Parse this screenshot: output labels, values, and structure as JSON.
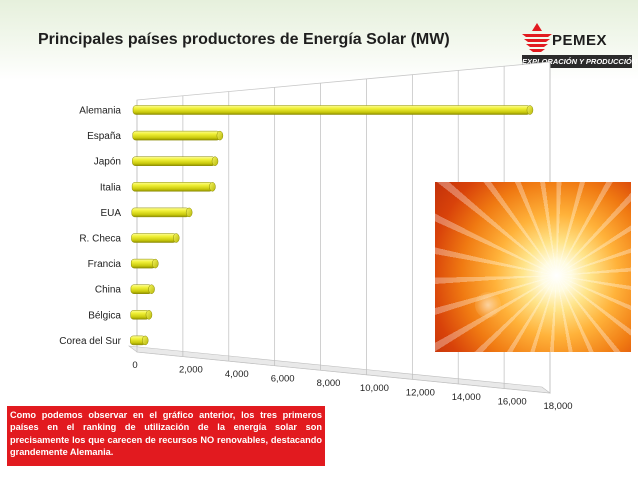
{
  "title": "Principales países productores de Energía Solar (MW)",
  "logo": {
    "name": "PEMEX",
    "subtitle": "EXPLORACIÓN Y PRODUCCIÓN"
  },
  "chart_data": {
    "type": "bar",
    "orientation": "horizontal",
    "style": "3d-cylinder",
    "title": "",
    "xlabel": "",
    "ylabel": "",
    "categories": [
      "Alemania",
      "España",
      "Japón",
      "Italia",
      "EUA",
      "R. Checa",
      "Francia",
      "China",
      "Bélgica",
      "Corea del Sur"
    ],
    "values": [
      17300,
      3800,
      3600,
      3500,
      2500,
      1950,
      1050,
      900,
      800,
      650
    ],
    "xlim": [
      0,
      18000
    ],
    "ticks": [
      0,
      2000,
      4000,
      6000,
      8000,
      10000,
      12000,
      14000,
      16000,
      18000
    ],
    "tick_labels": [
      "0",
      "2,000",
      "4,000",
      "6,000",
      "8,000",
      "10,000",
      "12,000",
      "14,000",
      "16,000",
      "18,000"
    ],
    "bar_color": "#e6e619",
    "grid": true
  },
  "note": {
    "text": "Como podemos observar en el gráfico anterior, los tres primeros países en el ranking de utilización de la energía solar son precisamente los que carecen de recursos NO renovables, destacando grandemente Alemania.",
    "background": "#e21a1f"
  },
  "colors": {
    "header": "#e6f0dc",
    "pemex_red": "#e21a1f"
  }
}
